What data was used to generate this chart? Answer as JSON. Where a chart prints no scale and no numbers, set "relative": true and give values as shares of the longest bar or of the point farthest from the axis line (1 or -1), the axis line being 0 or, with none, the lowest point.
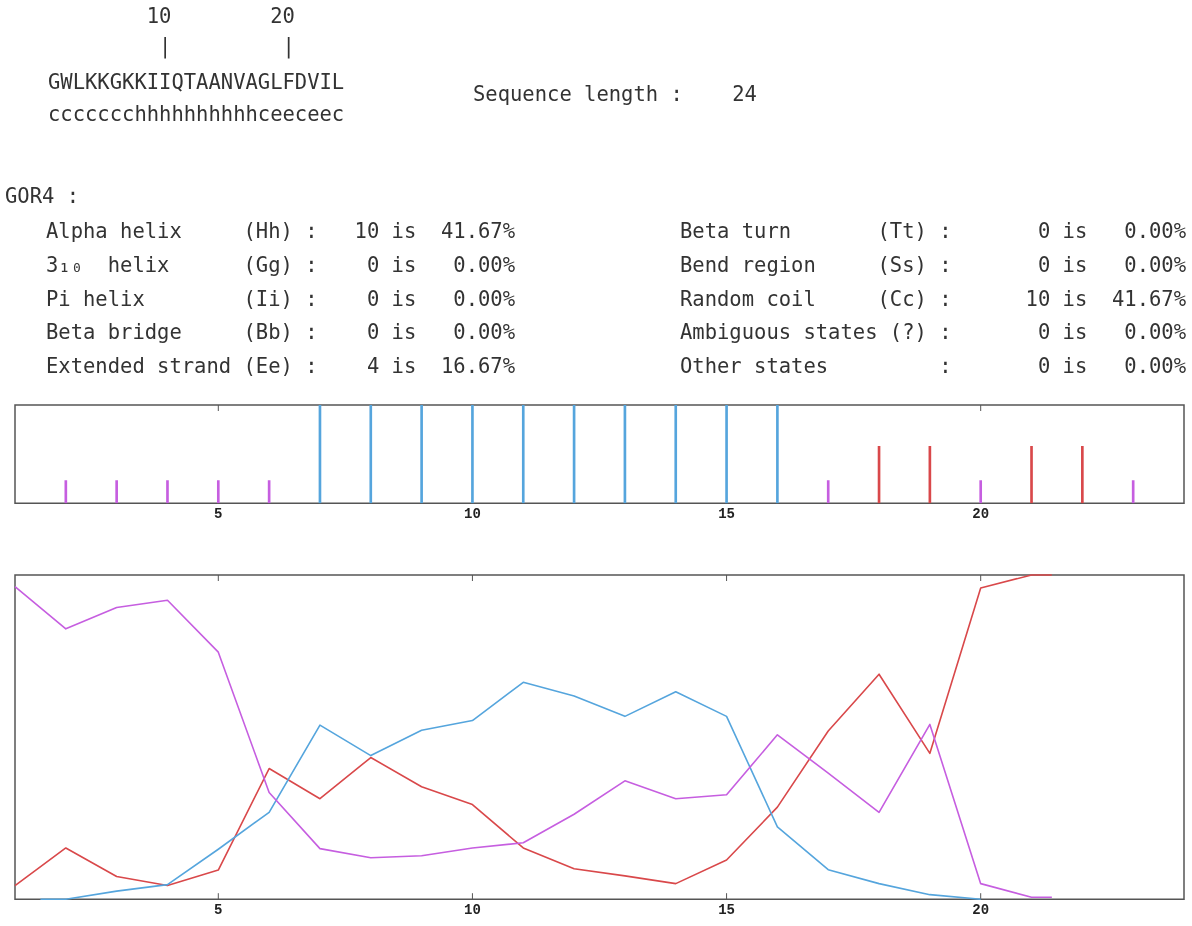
{
  "chart_data": [
    {
      "type": "other",
      "title": "GOR4 :",
      "annotations": [
        "        10        20",
        "         |         |",
        "GWLKKGKKIIQTAANVAGLFDVIL",
        "ccccccchhhhhhhhhhceeceec",
        "Sequence length :    24",
        "Alpha helix     (Hh) :   10 is  41.67%",
        "3₁₀  helix      (Gg) :    0 is   0.00%",
        "Pi helix        (Ii) :    0 is   0.00%",
        "Beta bridge     (Bb) :    0 is   0.00%",
        "Extended strand (Ee) :    4 is  16.67%",
        "Beta turn       (Tt) :       0 is   0.00%",
        "Bend region     (Ss) :       0 is   0.00%",
        "Random coil     (Cc) :      10 is  41.67%",
        "Ambiguous states (?) :       0 is   0.00%",
        "Other states         :       0 is   0.00%"
      ]
    },
    {
      "type": "bar",
      "relative": true,
      "x": [
        2,
        3,
        4,
        5,
        6,
        7,
        8,
        9,
        10,
        11,
        12,
        13,
        14,
        15,
        16,
        17,
        18,
        19,
        20,
        21,
        22,
        23
      ],
      "values": [
        0.23,
        0.23,
        0.23,
        0.23,
        0.23,
        1,
        1,
        1,
        1,
        1,
        1,
        1,
        1,
        1,
        1,
        0.23,
        0.58,
        0.58,
        0.23,
        0.58,
        0.58,
        0.23
      ],
      "colors": [
        "#c65ee0",
        "#c65ee0",
        "#c65ee0",
        "#c65ee0",
        "#c65ee0",
        "#55a5dd",
        "#55a5dd",
        "#55a5dd",
        "#55a5dd",
        "#55a5dd",
        "#55a5dd",
        "#55a5dd",
        "#55a5dd",
        "#55a5dd",
        "#55a5dd",
        "#c65ee0",
        "#d9484a",
        "#d9484a",
        "#c65ee0",
        "#d9484a",
        "#d9484a",
        "#c65ee0"
      ],
      "xlim": [
        1,
        24
      ],
      "xticks": [
        5,
        10,
        15,
        20
      ]
    },
    {
      "type": "line",
      "relative": true,
      "marker": "none",
      "x": [
        1,
        2,
        3,
        4,
        5,
        6,
        7,
        8,
        9,
        10,
        11,
        12,
        13,
        14,
        15,
        16,
        17,
        18,
        19,
        20,
        21,
        21.4
      ],
      "xlim": [
        1,
        24
      ],
      "xticks": [
        5,
        10,
        15,
        20
      ],
      "series": [
        {
          "color": "#c65ee0",
          "values": [
            0.964,
            0.834,
            0.9,
            0.922,
            0.762,
            0.329,
            0.156,
            0.128,
            0.134,
            0.158,
            0.174,
            0.262,
            0.365,
            0.31,
            0.322,
            0.507,
            0.389,
            0.268,
            0.539,
            0.048,
            0.006,
            0.006
          ]
        },
        {
          "color": "#55a5dd",
          "x": [
            1.5,
            2,
            3,
            4,
            5,
            6,
            7,
            8,
            9,
            10,
            11,
            12,
            13,
            14,
            15,
            16,
            17,
            18,
            19,
            20
          ],
          "values": [
            0,
            0,
            0.025,
            0.045,
            0.154,
            0.268,
            0.537,
            0.443,
            0.521,
            0.551,
            0.669,
            0.627,
            0.564,
            0.64,
            0.564,
            0.223,
            0.091,
            0.048,
            0.014,
            0
          ]
        },
        {
          "color": "#d9484a",
          "values": [
            0.042,
            0.158,
            0.07,
            0.042,
            0.09,
            0.403,
            0.31,
            0.437,
            0.347,
            0.292,
            0.158,
            0.094,
            0.072,
            0.048,
            0.121,
            0.284,
            0.519,
            0.694,
            0.45,
            0.96,
            1,
            1
          ]
        }
      ]
    }
  ]
}
